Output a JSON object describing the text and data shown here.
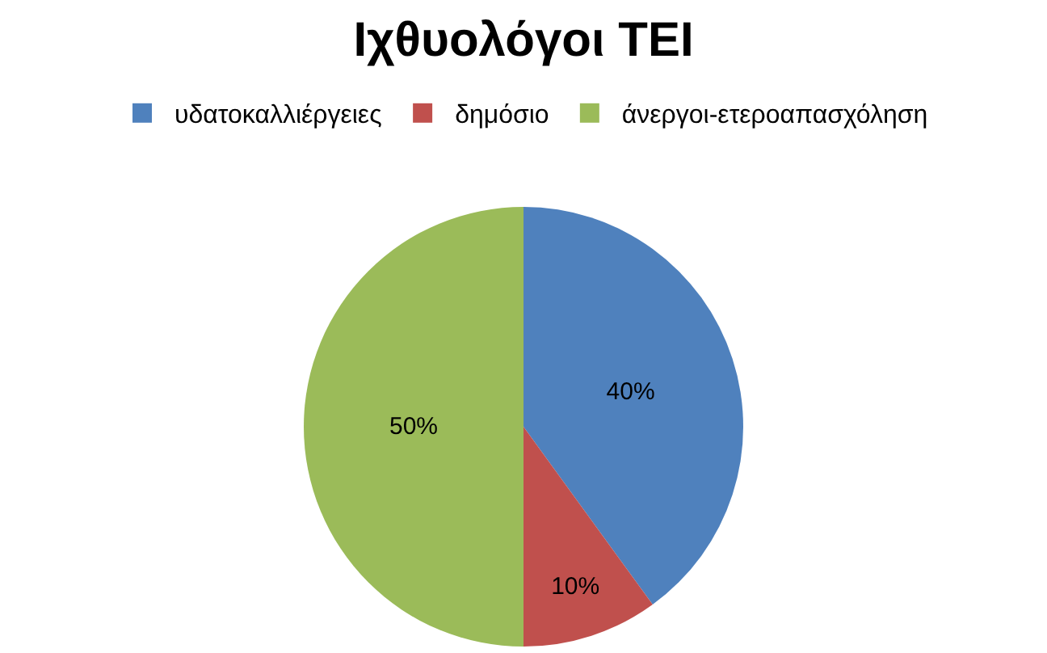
{
  "chart_data": {
    "type": "pie",
    "title": "Ιχθυολόγοι ΤΕΙ",
    "categories": [
      "υδατοκαλλιέργειες",
      "δημόσιο",
      "άνεργοι-ετεροαπασχόληση"
    ],
    "values": [
      40,
      10,
      50
    ],
    "value_labels": [
      "40%",
      "10%",
      "50%"
    ],
    "colors": [
      "#4f81bd",
      "#c0504d",
      "#9bbb59"
    ],
    "legend": "top"
  }
}
